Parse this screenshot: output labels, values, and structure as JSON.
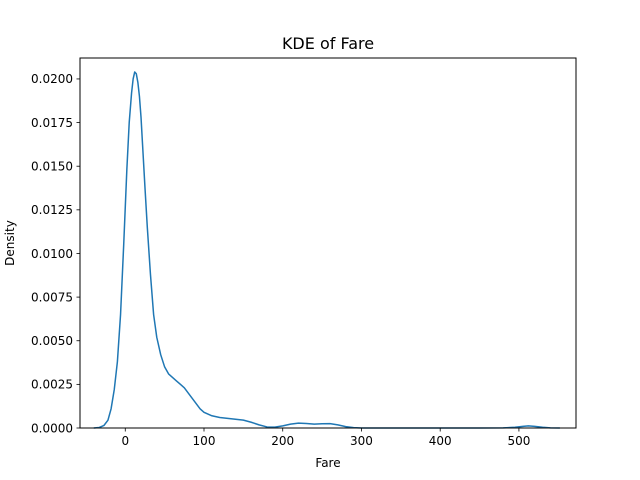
{
  "chart_data": {
    "type": "line",
    "title": "KDE of Fare",
    "xlabel": "Fare",
    "ylabel": "Density",
    "xlim": [
      -57.5,
      572.5
    ],
    "ylim": [
      0,
      0.0212
    ],
    "x_ticks": [
      0,
      100,
      200,
      300,
      400,
      500
    ],
    "x_tick_labels": [
      "0",
      "100",
      "200",
      "300",
      "400",
      "500"
    ],
    "y_ticks": [
      0,
      0.0025,
      0.005,
      0.0075,
      0.01,
      0.0125,
      0.015,
      0.0175,
      0.02
    ],
    "y_tick_labels": [
      "0.0000",
      "0.0025",
      "0.0050",
      "0.0075",
      "0.0100",
      "0.0125",
      "0.0150",
      "0.0175",
      "0.0200"
    ],
    "grid": false,
    "line_color": "#1f77b4",
    "series": [
      {
        "x": [
          -40,
          -33,
          -27,
          -22,
          -18,
          -14,
          -10,
          -6,
          -2,
          2,
          5,
          8,
          10,
          12,
          14,
          16,
          18,
          20,
          22,
          25,
          28,
          32,
          36,
          40,
          45,
          50,
          55,
          60,
          65,
          70,
          75,
          80,
          85,
          90,
          95,
          100,
          110,
          120,
          130,
          140,
          150,
          160,
          170,
          180,
          190,
          200,
          210,
          220,
          230,
          240,
          250,
          260,
          270,
          280,
          290,
          300,
          320,
          350,
          400,
          450,
          480,
          495,
          505,
          512,
          520,
          530,
          540,
          552
        ],
        "y": [
          0,
          3e-05,
          0.00015,
          0.00045,
          0.0011,
          0.0022,
          0.0038,
          0.0065,
          0.0105,
          0.0148,
          0.0175,
          0.0192,
          0.02,
          0.0204,
          0.0203,
          0.0198,
          0.019,
          0.0178,
          0.0162,
          0.0138,
          0.0115,
          0.0088,
          0.0065,
          0.0052,
          0.0042,
          0.0035,
          0.0031,
          0.0029,
          0.0027,
          0.0025,
          0.0023,
          0.002,
          0.0017,
          0.0014,
          0.0011,
          0.0009,
          0.0007,
          0.0006,
          0.00055,
          0.0005,
          0.00045,
          0.00033,
          0.00018,
          6e-05,
          5e-05,
          0.00012,
          0.00022,
          0.00028,
          0.00026,
          0.00022,
          0.00024,
          0.00025,
          0.00018,
          8e-05,
          2e-05,
          0,
          0,
          0,
          0,
          0,
          1e-05,
          4e-05,
          9e-05,
          0.00012,
          9e-05,
          4e-05,
          1e-05,
          0
        ]
      }
    ]
  }
}
